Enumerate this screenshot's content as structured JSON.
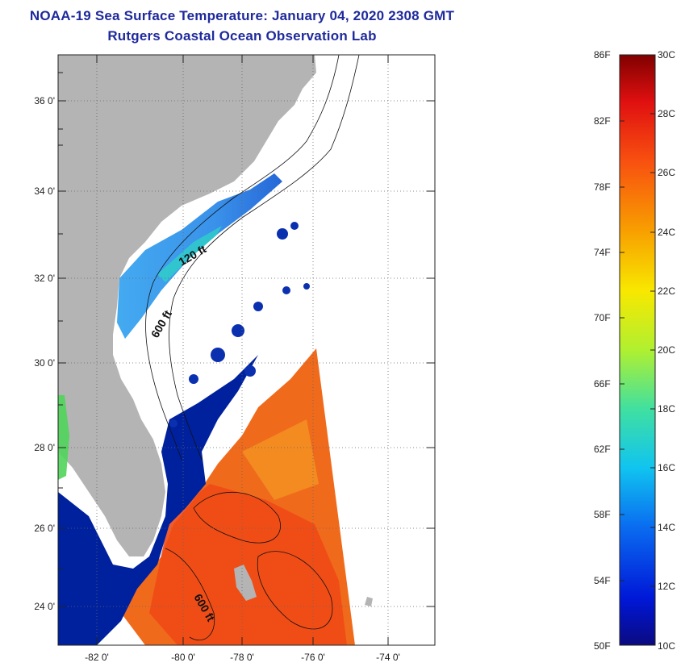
{
  "title_line1": "NOAA-19 Sea Surface Temperature:  January 04, 2020 2308 GMT",
  "title_line2": "Rutgers Coastal Ocean Observation Lab",
  "lat_labels": [
    "36 0'",
    "34 0'",
    "32 0'",
    "30 0'",
    "28 0'",
    "26 0'",
    "24 0'"
  ],
  "lon_labels": [
    "-82 0'",
    "-80 0'",
    "-78 0'",
    "-76 0'",
    "-74 0'"
  ],
  "contour_labels": [
    "120 ft",
    "600 ft",
    "600 ft"
  ],
  "colorbar": {
    "fahrenheit": [
      "86F",
      "82F",
      "78F",
      "74F",
      "70F",
      "66F",
      "62F",
      "58F",
      "54F",
      "50F"
    ],
    "celsius": [
      "30C",
      "28C",
      "26C",
      "24C",
      "22C",
      "20C",
      "18C",
      "16C",
      "14C",
      "12C",
      "10C"
    ]
  },
  "colors": {
    "title": "#1f2a9c",
    "land": "#b4b4b4",
    "cold": "#00219e",
    "warm": "#f06a1c"
  }
}
